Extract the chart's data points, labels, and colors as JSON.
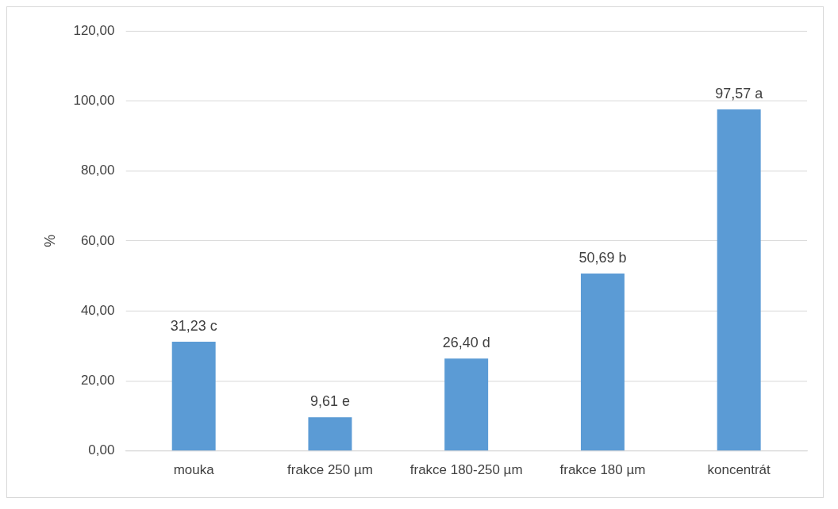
{
  "chart_data": {
    "type": "bar",
    "ylabel": "%",
    "categories": [
      "mouka",
      "frakce 250 µm",
      "frakce 180-250 µm",
      "frakce 180 µm",
      "koncentrát"
    ],
    "values": [
      31.23,
      9.61,
      26.4,
      50.69,
      97.57
    ],
    "value_labels": [
      "31,23 c",
      "9,61 e",
      "26,40 d",
      "50,69 b",
      "97,57 a"
    ],
    "color": "#5b9bd5",
    "ylim": [
      0,
      120
    ],
    "yticks": [
      {
        "value": 0,
        "label": "0,00"
      },
      {
        "value": 20,
        "label": "20,00"
      },
      {
        "value": 40,
        "label": "40,00"
      },
      {
        "value": 60,
        "label": "60,00"
      },
      {
        "value": 80,
        "label": "80,00"
      },
      {
        "value": 100,
        "label": "100,00"
      },
      {
        "value": 120,
        "label": "120,00"
      }
    ],
    "grid": "y",
    "legend": false
  }
}
